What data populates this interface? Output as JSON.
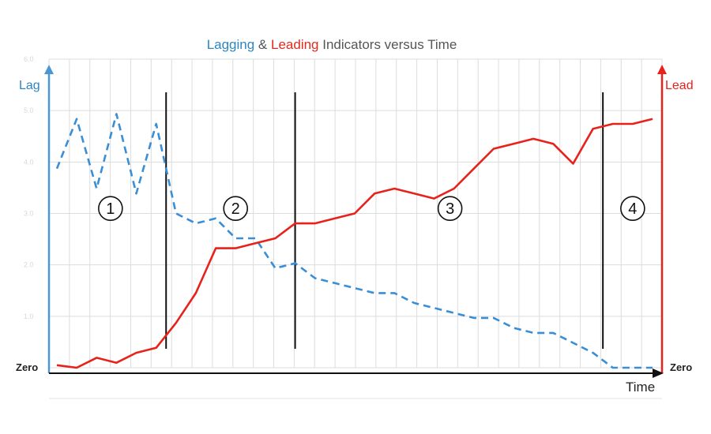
{
  "chart_data": {
    "type": "line",
    "title": {
      "parts": [
        {
          "text": "Lagging",
          "color": "#2e86c1"
        },
        {
          "text": " & ",
          "color": "#555555"
        },
        {
          "text": "Leading",
          "color": "#e02a1d"
        },
        {
          "text": " Indicators versus Time",
          "color": "#555555"
        }
      ]
    },
    "xlabel": "Time",
    "ylabel_left": "Lag",
    "ylabel_right": "Lead",
    "zero_left": "Zero",
    "zero_right": "Zero",
    "y_ticks": [
      "6.0",
      "5.0",
      "4.0",
      "3.0",
      "2.0",
      "1.0"
    ],
    "x_range": [
      0,
      30
    ],
    "y_range": [
      0,
      6.2
    ],
    "grid": true,
    "phase_dividers": [
      5.5,
      12,
      27.5
    ],
    "phases": [
      {
        "label": "①",
        "x": 2.7,
        "y": 3.2
      },
      {
        "label": "②",
        "x": 9.0,
        "y": 3.2
      },
      {
        "label": "③",
        "x": 19.8,
        "y": 3.2
      },
      {
        "label": "④",
        "x": 29.0,
        "y": 3.2
      }
    ],
    "series": [
      {
        "name": "Lagging",
        "color": "#3a8ed6",
        "dash": true,
        "points": [
          [
            0,
            4.0
          ],
          [
            1,
            5.0
          ],
          [
            2,
            3.6
          ],
          [
            3,
            5.1
          ],
          [
            4,
            3.5
          ],
          [
            5,
            4.9
          ],
          [
            6,
            3.1
          ],
          [
            7,
            2.9
          ],
          [
            8,
            3.0
          ],
          [
            9,
            2.6
          ],
          [
            10,
            2.6
          ],
          [
            11,
            2.0
          ],
          [
            12,
            2.1
          ],
          [
            13,
            1.8
          ],
          [
            14,
            1.7
          ],
          [
            15,
            1.6
          ],
          [
            16,
            1.5
          ],
          [
            17,
            1.5
          ],
          [
            18,
            1.3
          ],
          [
            19,
            1.2
          ],
          [
            20,
            1.1
          ],
          [
            21,
            1.0
          ],
          [
            22,
            1.0
          ],
          [
            23,
            0.8
          ],
          [
            24,
            0.7
          ],
          [
            25,
            0.7
          ],
          [
            26,
            0.5
          ],
          [
            27,
            0.3
          ],
          [
            28,
            0.0
          ],
          [
            29,
            0.0
          ],
          [
            30,
            0.0
          ]
        ]
      },
      {
        "name": "Leading",
        "color": "#e8211b",
        "dash": false,
        "points": [
          [
            0,
            0.05
          ],
          [
            1,
            0.0
          ],
          [
            2,
            0.2
          ],
          [
            3,
            0.1
          ],
          [
            4,
            0.3
          ],
          [
            5,
            0.4
          ],
          [
            6,
            0.9
          ],
          [
            7,
            1.5
          ],
          [
            8,
            2.4
          ],
          [
            9,
            2.4
          ],
          [
            10,
            2.5
          ],
          [
            11,
            2.6
          ],
          [
            12,
            2.9
          ],
          [
            13,
            2.9
          ],
          [
            14,
            3.0
          ],
          [
            15,
            3.1
          ],
          [
            16,
            3.5
          ],
          [
            17,
            3.6
          ],
          [
            18,
            3.5
          ],
          [
            19,
            3.4
          ],
          [
            20,
            3.6
          ],
          [
            21,
            4.0
          ],
          [
            22,
            4.4
          ],
          [
            23,
            4.5
          ],
          [
            24,
            4.6
          ],
          [
            25,
            4.5
          ],
          [
            26,
            4.1
          ],
          [
            27,
            4.8
          ],
          [
            28,
            4.9
          ],
          [
            29,
            4.9
          ],
          [
            30,
            5.0
          ]
        ]
      }
    ]
  }
}
